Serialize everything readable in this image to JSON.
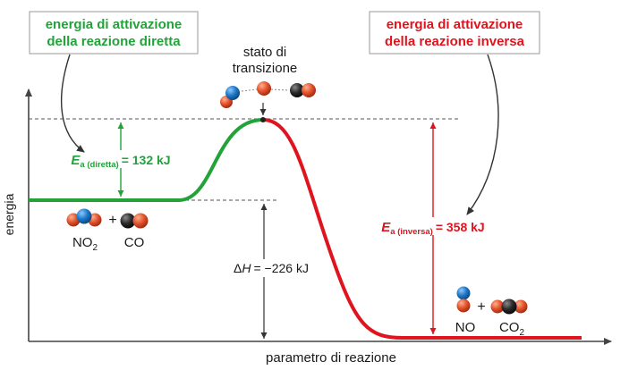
{
  "colors": {
    "forward": "#22a33a",
    "reverse": "#e0141e",
    "axis": "#444444",
    "guide": "#555555",
    "text": "#1a1a1a",
    "callout_border": "#9a9a9a",
    "atom_oxygen": "#e4532d",
    "atom_nitrogen": "#1f78c8",
    "atom_carbon": "#2b2b2b"
  },
  "callouts": {
    "forward": {
      "line1": "energia di attivazione",
      "line2": "della reazione diretta"
    },
    "reverse": {
      "line1": "energia di attivazione",
      "line2": "della reazione inversa"
    }
  },
  "transition_state": {
    "line1": "stato di",
    "line2": "transizione"
  },
  "axes": {
    "y_label": "energia",
    "x_label": "parametro di reazione"
  },
  "ea_forward": {
    "symbol": "E",
    "subscript": "a (diretta)",
    "value": "= 132 kJ"
  },
  "ea_reverse": {
    "symbol": "E",
    "subscript": "a (inversa)",
    "value": "= 358 kJ"
  },
  "delta_h": {
    "symbol": "ΔH",
    "italic_part": "H",
    "value": "= −226 kJ"
  },
  "reactants": {
    "species1": "NO",
    "species1_sub": "2",
    "plus": "+",
    "species2": "CO"
  },
  "products": {
    "species1": "NO",
    "plus": "+",
    "species2": "CO",
    "species2_sub": "2"
  },
  "icons": {
    "forward_callout_arrow": "curved-arrow-icon",
    "reverse_callout_arrow": "curved-arrow-icon"
  }
}
